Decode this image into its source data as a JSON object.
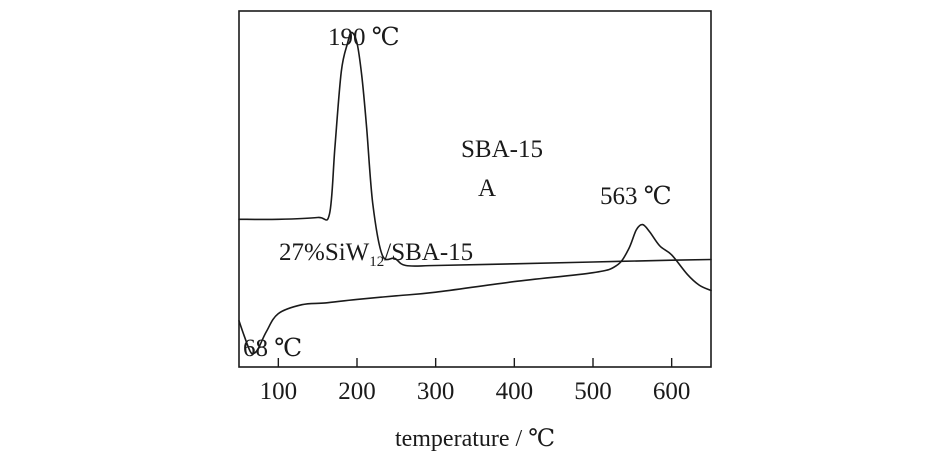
{
  "chart_data": {
    "type": "line",
    "xlabel": "temperature / ℃",
    "ylabel": "",
    "xlim": [
      50,
      650
    ],
    "xticks": [
      100,
      200,
      300,
      400,
      500,
      600
    ],
    "grid": false,
    "series": [
      {
        "name": "SBA-15",
        "points": [
          [
            50,
            0.415
          ],
          [
            100,
            0.415
          ],
          [
            150,
            0.42
          ],
          [
            165,
            0.43
          ],
          [
            172,
            0.62
          ],
          [
            180,
            0.83
          ],
          [
            188,
            0.91
          ],
          [
            193,
            0.94
          ],
          [
            200,
            0.91
          ],
          [
            206,
            0.82
          ],
          [
            212,
            0.68
          ],
          [
            220,
            0.46
          ],
          [
            232,
            0.315
          ],
          [
            248,
            0.305
          ],
          [
            262,
            0.285
          ],
          [
            300,
            0.285
          ],
          [
            400,
            0.29
          ],
          [
            500,
            0.295
          ],
          [
            600,
            0.3
          ],
          [
            650,
            0.302
          ]
        ]
      },
      {
        "name": "27%SiW12/SBA-15",
        "points": [
          [
            50,
            0.13
          ],
          [
            57,
            0.085
          ],
          [
            64,
            0.045
          ],
          [
            68,
            0.038
          ],
          [
            74,
            0.05
          ],
          [
            85,
            0.1
          ],
          [
            100,
            0.15
          ],
          [
            130,
            0.175
          ],
          [
            160,
            0.18
          ],
          [
            200,
            0.19
          ],
          [
            250,
            0.2
          ],
          [
            300,
            0.21
          ],
          [
            400,
            0.24
          ],
          [
            500,
            0.265
          ],
          [
            530,
            0.285
          ],
          [
            545,
            0.33
          ],
          [
            555,
            0.385
          ],
          [
            563,
            0.4
          ],
          [
            572,
            0.38
          ],
          [
            585,
            0.34
          ],
          [
            600,
            0.315
          ],
          [
            620,
            0.26
          ],
          [
            635,
            0.23
          ],
          [
            650,
            0.215
          ]
        ]
      }
    ],
    "annotations": {
      "peak_190": "190 ℃",
      "peak_563": "563 ℃",
      "peak_68": "68 ℃",
      "sba_label": "SBA-15",
      "letter_a": "A",
      "siw_prefix": "27%SiW",
      "siw_sub": "12",
      "siw_suffix": "/SBA-15"
    }
  }
}
